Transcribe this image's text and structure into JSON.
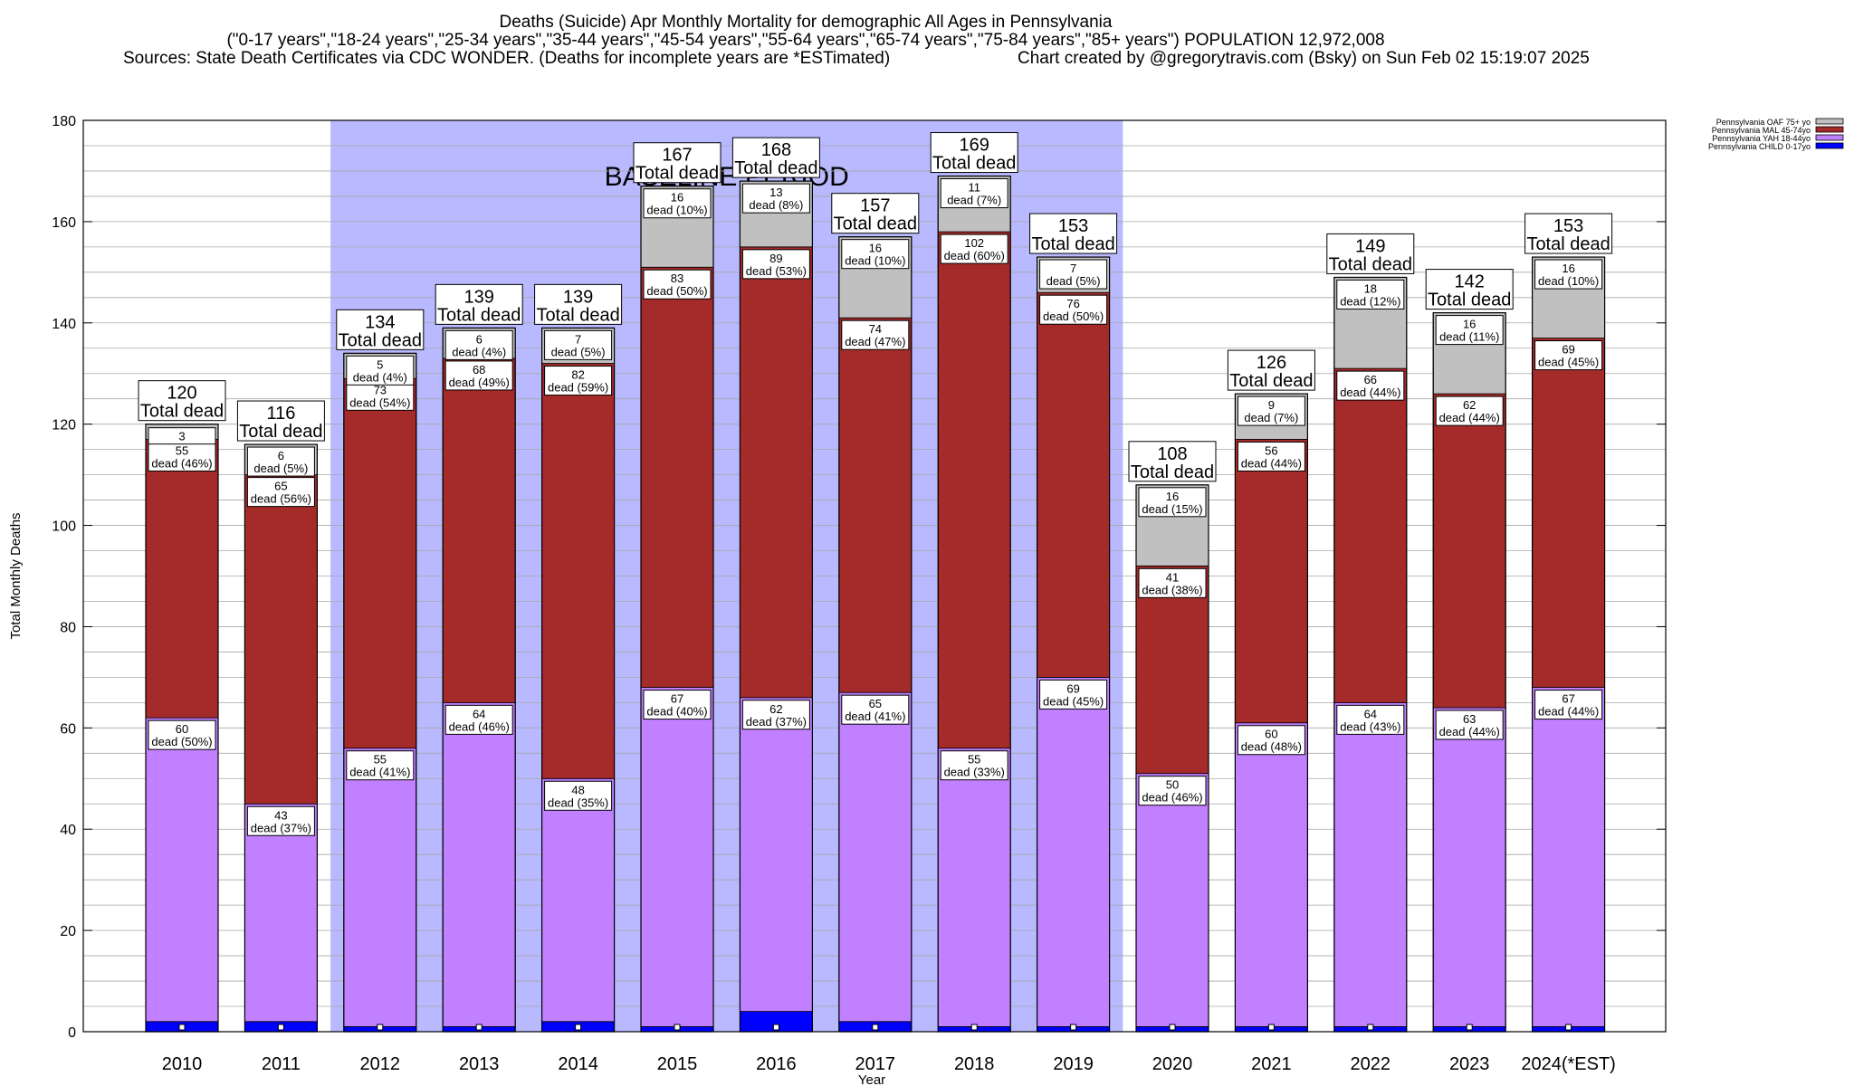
{
  "header": {
    "title": "Deaths (Suicide) Apr Monthly Mortality for demographic All Ages in Pennsylvania",
    "subtitle": "(\"0-17 years\",\"18-24 years\",\"25-34 years\",\"35-44 years\",\"45-54 years\",\"55-64 years\",\"65-74 years\",\"75-84 years\",\"85+ years\") POPULATION 12,972,008",
    "sources": "Sources: State Death Certificates via CDC WONDER. (Deaths for incomplete years are *ESTimated)",
    "credit": "Chart created by @gregorytravis.com (Bsky) on Sun Feb 02 15:19:07 2025"
  },
  "chart_data": {
    "type": "bar",
    "stacked": true,
    "xlabel": "Year",
    "ylabel": "Total Monthly Deaths",
    "ylim": [
      0,
      180
    ],
    "yticks": [
      0,
      20,
      40,
      60,
      80,
      100,
      120,
      140,
      160,
      180
    ],
    "baseline_label": "BASELINE PERIOD",
    "baseline_range": [
      "2012",
      "2019"
    ],
    "total_label_suffix": "Total dead",
    "categories": [
      "2010",
      "2011",
      "2012",
      "2013",
      "2014",
      "2015",
      "2016",
      "2017",
      "2018",
      "2019",
      "2020",
      "2021",
      "2022",
      "2023",
      "2024(*EST)"
    ],
    "totals": [
      120,
      116,
      134,
      139,
      139,
      167,
      168,
      157,
      169,
      153,
      108,
      126,
      149,
      142,
      153
    ],
    "series": [
      {
        "name": "Pennsylvania CHILD 0-17yo",
        "color": "#0000ff",
        "values": [
          2,
          2,
          1,
          1,
          2,
          1,
          4,
          2,
          1,
          1,
          1,
          1,
          1,
          1,
          1
        ],
        "labels": [
          "",
          "",
          "",
          "",
          "",
          "",
          "",
          "",
          "",
          "",
          "",
          "",
          "",
          "",
          ""
        ]
      },
      {
        "name": "Pennsylvania YAH 18-44yo",
        "color": "#c080ff",
        "values": [
          60,
          43,
          55,
          64,
          48,
          67,
          62,
          65,
          55,
          69,
          50,
          60,
          64,
          63,
          67
        ],
        "labels": [
          "dead (50%)",
          "dead (37%)",
          "dead (41%)",
          "dead (46%)",
          "dead (35%)",
          "dead (40%)",
          "dead (37%)",
          "dead (41%)",
          "dead (33%)",
          "dead (45%)",
          "dead (46%)",
          "dead (48%)",
          "dead (43%)",
          "dead (44%)",
          "dead (44%)"
        ]
      },
      {
        "name": "Pennsylvania MAL 45-74yo",
        "color": "#a52a2a",
        "values": [
          55,
          65,
          73,
          68,
          82,
          83,
          89,
          74,
          102,
          76,
          41,
          56,
          66,
          62,
          69
        ],
        "labels": [
          "dead (46%)",
          "dead (56%)",
          "dead (54%)",
          "dead (49%)",
          "dead (59%)",
          "dead (50%)",
          "dead (53%)",
          "dead (47%)",
          "dead (60%)",
          "dead (50%)",
          "dead (38%)",
          "dead (44%)",
          "dead (44%)",
          "dead (44%)",
          "dead (45%)"
        ]
      },
      {
        "name": "Pennsylvania OAF 75+ yo",
        "color": "#c0c0c0",
        "values": [
          3,
          6,
          5,
          6,
          7,
          16,
          13,
          16,
          11,
          7,
          16,
          9,
          18,
          16,
          16
        ],
        "labels": [
          "",
          "dead (5%)",
          "dead (4%)",
          "dead (4%)",
          "dead (5%)",
          "dead (10%)",
          "dead (8%)",
          "dead (10%)",
          "dead (7%)",
          "dead (5%)",
          "dead (15%)",
          "dead (7%)",
          "dead (12%)",
          "dead (11%)",
          "dead (10%)"
        ]
      }
    ],
    "legend_position": "top-right",
    "legend_order": [
      3,
      2,
      1,
      0
    ]
  }
}
